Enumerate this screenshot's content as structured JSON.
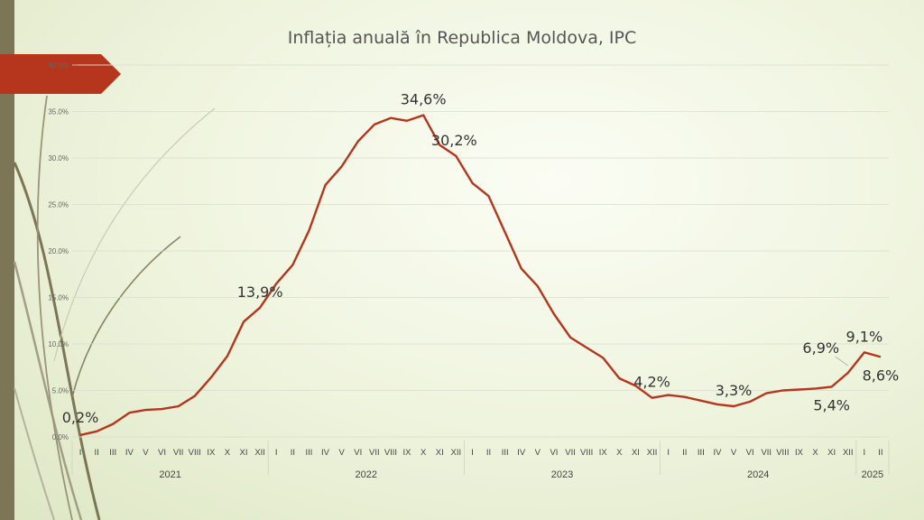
{
  "chart_data": {
    "type": "line",
    "title": "Inflația anuală în Republica Moldova, IPC",
    "xlabel": "",
    "ylabel": "",
    "ylim": [
      0,
      40
    ],
    "yticks": [
      0,
      5,
      10,
      15,
      20,
      25,
      30,
      35,
      40
    ],
    "ytick_labels": [
      "0.0%",
      "5.0%",
      "10.0%",
      "15.0%",
      "20.0%",
      "25.0%",
      "30.0%",
      "35.0%",
      "40.0%"
    ],
    "grid": true,
    "month_labels": [
      "I",
      "II",
      "III",
      "IV",
      "V",
      "VI",
      "VII",
      "VIII",
      "IX",
      "X",
      "XI",
      "XII"
    ],
    "years": [
      {
        "label": "2021",
        "months": 12
      },
      {
        "label": "2022",
        "months": 12
      },
      {
        "label": "2023",
        "months": 12
      },
      {
        "label": "2024",
        "months": 12
      },
      {
        "label": "2025",
        "months": 2
      }
    ],
    "series": [
      {
        "name": "IPC",
        "color": "#b5361c",
        "values": [
          0.2,
          0.6,
          1.4,
          2.6,
          2.9,
          3.0,
          3.3,
          4.4,
          6.4,
          8.7,
          12.4,
          13.9,
          16.5,
          18.5,
          22.2,
          27.1,
          29.1,
          31.8,
          33.6,
          34.3,
          34.0,
          34.6,
          31.4,
          30.2,
          27.3,
          25.9,
          22.0,
          18.1,
          16.2,
          13.2,
          10.7,
          9.6,
          8.5,
          6.3,
          5.5,
          4.2,
          4.5,
          4.3,
          3.9,
          3.5,
          3.3,
          3.8,
          4.7,
          5.0,
          5.1,
          5.2,
          5.4,
          6.9,
          9.1,
          8.6
        ]
      }
    ],
    "data_labels": [
      {
        "index": 0,
        "text": "0,2%",
        "pos": "below"
      },
      {
        "index": 11,
        "text": "13,9%",
        "pos": "above"
      },
      {
        "index": 21,
        "text": "34,6%",
        "pos": "above"
      },
      {
        "index": 23,
        "text": "30,2%",
        "pos": "above-left"
      },
      {
        "index": 35,
        "text": "4,2%",
        "pos": "above"
      },
      {
        "index": 40,
        "text": "3,3%",
        "pos": "above"
      },
      {
        "index": 46,
        "text": "5,4%",
        "pos": "below"
      },
      {
        "index": 47,
        "text": "6,9%",
        "pos": "callout"
      },
      {
        "index": 48,
        "text": "9,1%",
        "pos": "above"
      },
      {
        "index": 49,
        "text": "8,6%",
        "pos": "below"
      }
    ]
  },
  "decor": {
    "accent": "#b5361c",
    "side_bar": "#7c7556",
    "vine": "#8a8466"
  }
}
